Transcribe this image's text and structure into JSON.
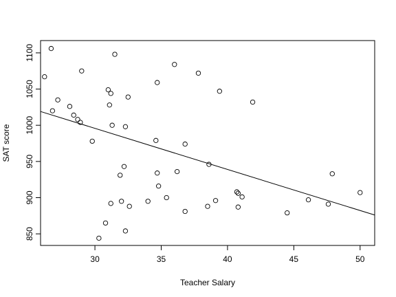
{
  "chart_data": {
    "type": "scatter",
    "title": "",
    "xlabel": "Teacher Salary",
    "ylabel": "SAT score",
    "xlim": [
      25.9,
      51.1
    ],
    "ylim": [
      834,
      1117
    ],
    "xticks": [
      30,
      35,
      40,
      45,
      50
    ],
    "yticks": [
      850,
      900,
      950,
      1000,
      1050,
      1100
    ],
    "grid": false,
    "legend": "none",
    "points": [
      {
        "x": 26.2,
        "y": 1067
      },
      {
        "x": 26.7,
        "y": 1106
      },
      {
        "x": 26.8,
        "y": 1020
      },
      {
        "x": 27.2,
        "y": 1035
      },
      {
        "x": 28.1,
        "y": 1026
      },
      {
        "x": 28.4,
        "y": 1014
      },
      {
        "x": 28.7,
        "y": 1008
      },
      {
        "x": 28.9,
        "y": 1004
      },
      {
        "x": 29.0,
        "y": 1075
      },
      {
        "x": 29.8,
        "y": 978
      },
      {
        "x": 30.3,
        "y": 844
      },
      {
        "x": 30.8,
        "y": 865
      },
      {
        "x": 31.0,
        "y": 1049
      },
      {
        "x": 31.1,
        "y": 1028
      },
      {
        "x": 31.2,
        "y": 1044
      },
      {
        "x": 31.2,
        "y": 892
      },
      {
        "x": 31.3,
        "y": 1000
      },
      {
        "x": 31.5,
        "y": 1098
      },
      {
        "x": 31.9,
        "y": 931
      },
      {
        "x": 32.0,
        "y": 895
      },
      {
        "x": 32.2,
        "y": 943
      },
      {
        "x": 32.3,
        "y": 998
      },
      {
        "x": 32.3,
        "y": 854
      },
      {
        "x": 32.5,
        "y": 1039
      },
      {
        "x": 32.6,
        "y": 888
      },
      {
        "x": 34.0,
        "y": 895
      },
      {
        "x": 34.6,
        "y": 979
      },
      {
        "x": 34.7,
        "y": 1059
      },
      {
        "x": 34.7,
        "y": 934
      },
      {
        "x": 34.8,
        "y": 916
      },
      {
        "x": 35.4,
        "y": 900
      },
      {
        "x": 36.0,
        "y": 1084
      },
      {
        "x": 36.2,
        "y": 936
      },
      {
        "x": 36.8,
        "y": 974
      },
      {
        "x": 36.8,
        "y": 881
      },
      {
        "x": 37.8,
        "y": 1072
      },
      {
        "x": 38.5,
        "y": 888
      },
      {
        "x": 38.6,
        "y": 946
      },
      {
        "x": 39.1,
        "y": 896
      },
      {
        "x": 39.4,
        "y": 1047
      },
      {
        "x": 40.7,
        "y": 908
      },
      {
        "x": 40.8,
        "y": 887
      },
      {
        "x": 40.8,
        "y": 906
      },
      {
        "x": 41.1,
        "y": 901
      },
      {
        "x": 41.9,
        "y": 1032
      },
      {
        "x": 44.5,
        "y": 879
      },
      {
        "x": 46.1,
        "y": 897
      },
      {
        "x": 47.6,
        "y": 891
      },
      {
        "x": 47.9,
        "y": 933
      },
      {
        "x": 50.0,
        "y": 907
      }
    ],
    "fit_line": {
      "x": [
        25.9,
        51.1
      ],
      "y": [
        1019,
        876
      ]
    }
  }
}
